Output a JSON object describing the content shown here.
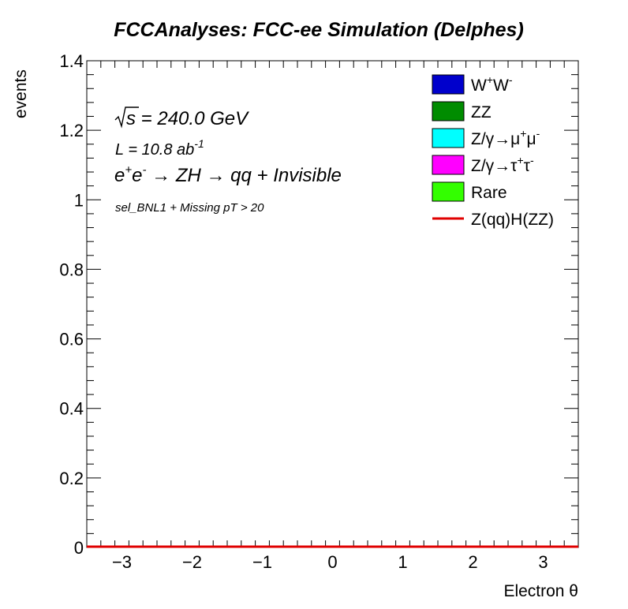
{
  "chart_data": {
    "type": "bar",
    "title": "FCCAnalyses: FCC-ee Simulation (Delphes)",
    "xlabel": "Electron θ",
    "ylabel": "events",
    "xlim": [
      -3.5,
      3.5
    ],
    "ylim": [
      0,
      1.4
    ],
    "x_ticks": [
      "−3",
      "−2",
      "−1",
      "0",
      "1",
      "2",
      "3"
    ],
    "y_ticks": [
      "0",
      "0.2",
      "0.4",
      "0.6",
      "0.8",
      "1",
      "1.2",
      "1.4"
    ],
    "annotations": {
      "sqrt_s_symbol": "√s",
      "energy": " = 240.0 GeV",
      "lumi_prefix": "L = 10.8 ab",
      "lumi_exp": "-1",
      "process_e1": "e",
      "process_sup1": "+",
      "process_e2": "e",
      "process_sup2": "-",
      "process_rest": " → ZH → qq + Invisible",
      "selection": "sel_BNL1 + Missing pT > 20"
    },
    "legend_position": "top-right",
    "series": [
      {
        "name": "W⁺W⁻",
        "label_base1": "W",
        "label_sup1": "+",
        "label_base2": "W",
        "label_sup2": "-",
        "color": "#0000cc",
        "kind": "fill",
        "values": []
      },
      {
        "name": "ZZ",
        "label_base1": "ZZ",
        "color": "#008c00",
        "kind": "fill",
        "values": []
      },
      {
        "name": "Z/γ→μ⁺μ⁻",
        "label_base1": "Z/γ→μ",
        "label_sup1": "+",
        "label_base2": "μ",
        "label_sup2": "-",
        "color": "#00ffff",
        "kind": "fill",
        "values": []
      },
      {
        "name": "Z/γ→τ⁺τ⁻",
        "label_base1": "Z/γ→τ",
        "label_sup1": "+",
        "label_base2": "τ",
        "label_sup2": "-",
        "color": "#ff00ff",
        "kind": "fill",
        "values": []
      },
      {
        "name": "Rare",
        "label_base1": "Rare",
        "color": "#33ff00",
        "kind": "fill",
        "values": []
      },
      {
        "name": "Z(qq)H(ZZ)",
        "label_base1": "Z(qq)H(ZZ)",
        "color": "#e00000",
        "kind": "line",
        "values": [
          0
        ]
      }
    ]
  }
}
